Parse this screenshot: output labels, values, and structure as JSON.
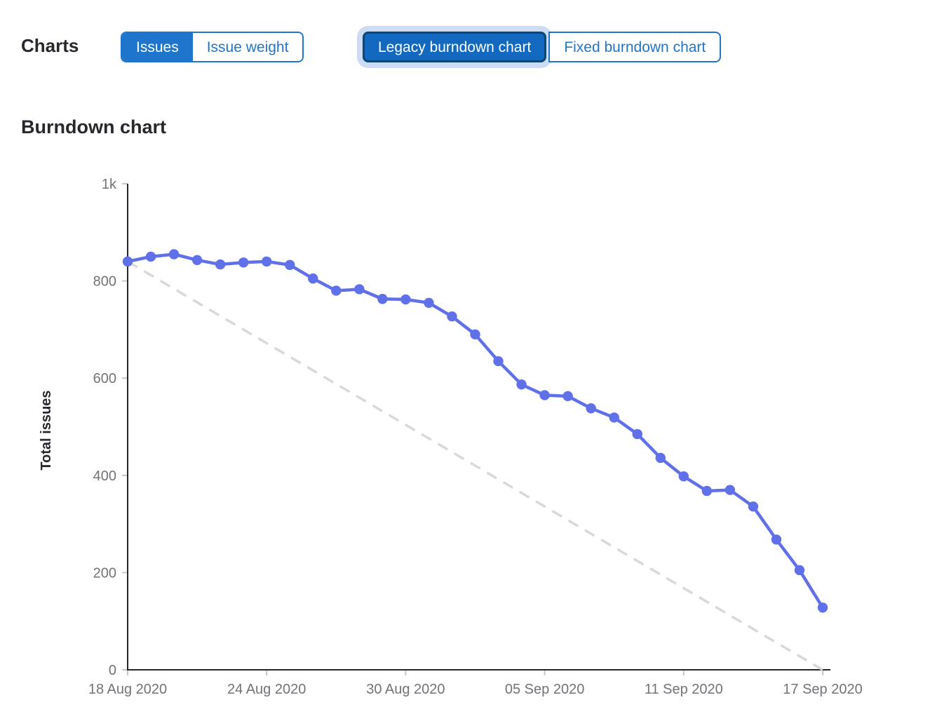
{
  "header": {
    "charts_label": "Charts",
    "metric_toggle": {
      "options": [
        {
          "label": "Issues",
          "selected": true
        },
        {
          "label": "Issue weight",
          "selected": false
        }
      ]
    },
    "chart_type_toggle": {
      "options": [
        {
          "label": "Legacy burndown chart",
          "selected": true,
          "focused": true
        },
        {
          "label": "Fixed burndown chart",
          "selected": false
        }
      ]
    }
  },
  "section_title": "Burndown chart",
  "colors": {
    "brand_blue": "#1f75cb",
    "selected_focus_fill": "#1269bf",
    "selected_focus_border": "#0b4674",
    "focus_ring": "#cbdcf4",
    "line_blue": "#6070e8",
    "guideline_gray": "#d9d9d9",
    "axis_dark": "#28272e",
    "tick_gray": "#c7c7cb",
    "tick_label_gray": "#737278",
    "heading_dark": "#28272d"
  },
  "chart_data": {
    "type": "line",
    "title": "Burndown chart",
    "xlabel": "",
    "ylabel": "Total issues",
    "ylim": [
      0,
      1000
    ],
    "grid": false,
    "legend_position": "none",
    "y_ticks": [
      {
        "value": 0,
        "label": "0"
      },
      {
        "value": 200,
        "label": "200"
      },
      {
        "value": 400,
        "label": "400"
      },
      {
        "value": 600,
        "label": "600"
      },
      {
        "value": 800,
        "label": "800"
      },
      {
        "value": 1000,
        "label": "1k"
      }
    ],
    "x_dates": [
      "18 Aug 2020",
      "19 Aug 2020",
      "20 Aug 2020",
      "21 Aug 2020",
      "22 Aug 2020",
      "23 Aug 2020",
      "24 Aug 2020",
      "25 Aug 2020",
      "26 Aug 2020",
      "27 Aug 2020",
      "28 Aug 2020",
      "29 Aug 2020",
      "30 Aug 2020",
      "31 Aug 2020",
      "01 Sep 2020",
      "02 Sep 2020",
      "03 Sep 2020",
      "04 Sep 2020",
      "05 Sep 2020",
      "06 Sep 2020",
      "07 Sep 2020",
      "08 Sep 2020",
      "09 Sep 2020",
      "10 Sep 2020",
      "11 Sep 2020",
      "12 Sep 2020",
      "13 Sep 2020",
      "14 Sep 2020",
      "15 Sep 2020",
      "16 Sep 2020",
      "17 Sep 2020"
    ],
    "x_tick_day_indices": [
      0,
      6,
      12,
      18,
      24,
      30
    ],
    "series": [
      {
        "name": "Issues",
        "color": "#6070e8",
        "values": [
          840,
          850,
          855,
          843,
          834,
          838,
          840,
          833,
          805,
          780,
          783,
          763,
          762,
          755,
          727,
          690,
          635,
          587,
          565,
          563,
          538,
          519,
          485,
          436,
          398,
          368,
          370,
          336,
          268,
          205,
          128
        ]
      }
    ],
    "guideline": {
      "style": "dashed",
      "color": "#d9d9d9",
      "start_day": 0,
      "start_value": 840,
      "end_day": 30,
      "end_value": 0
    }
  }
}
